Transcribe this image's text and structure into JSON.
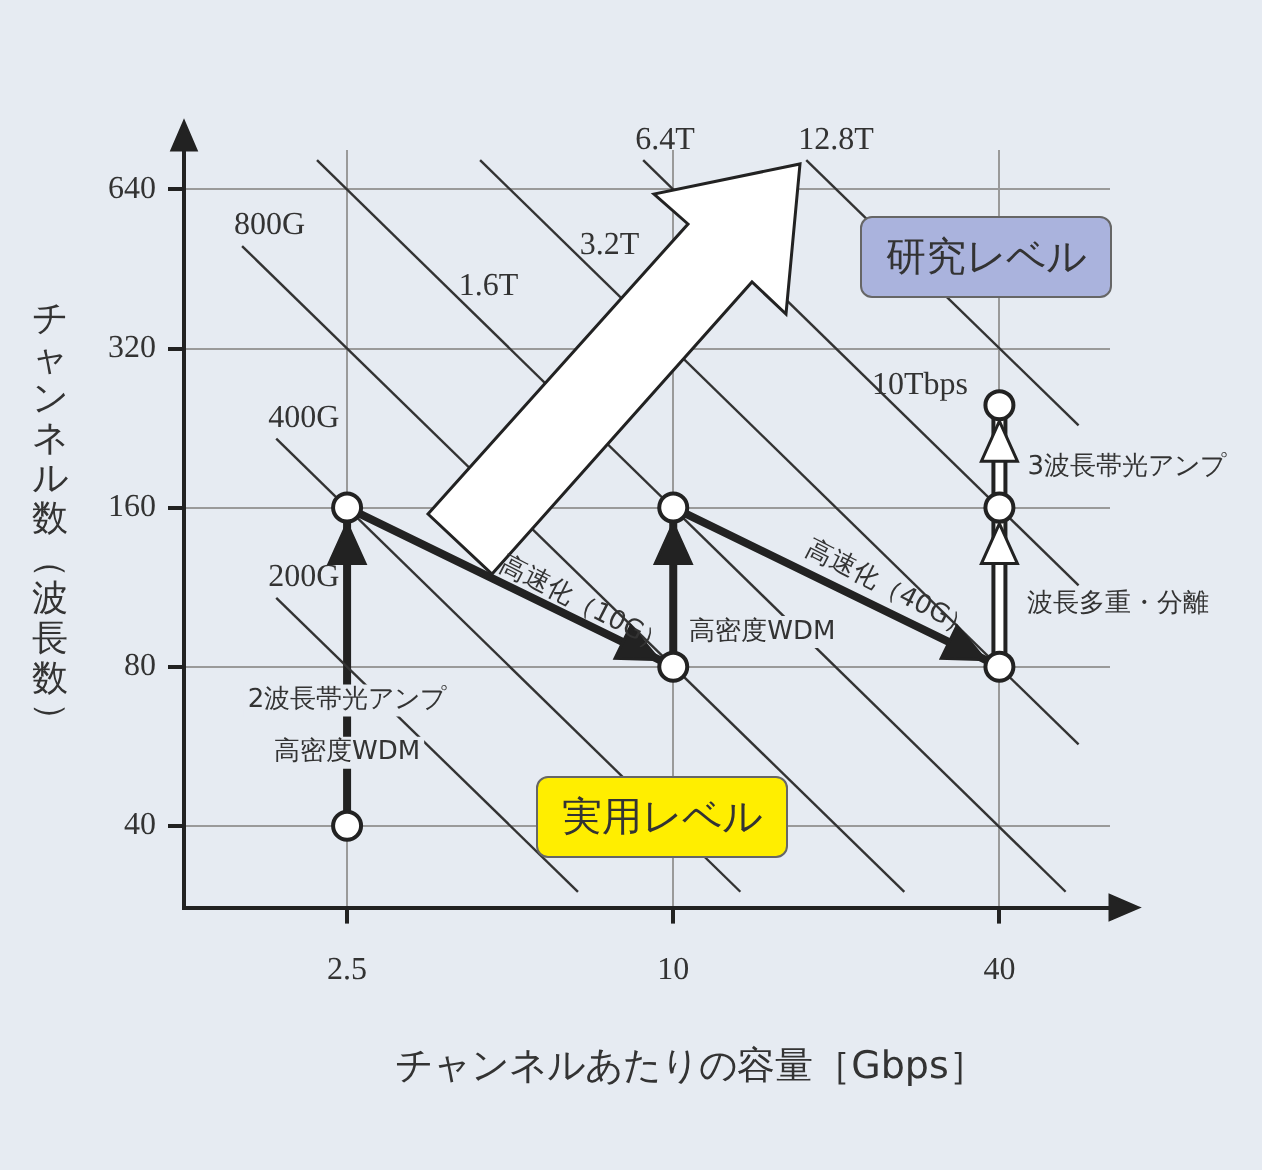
{
  "chart_data": {
    "type": "scatter",
    "xlabel": "チャンネルあたりの容量［Gbps］",
    "ylabel": "チャンネル数（波長数）",
    "log": "xy",
    "xlim": [
      1.25,
      64
    ],
    "ylim": [
      28,
      760
    ],
    "xticks": [
      2.5,
      10,
      40
    ],
    "yticks": [
      40,
      80,
      160,
      320,
      640
    ],
    "grid": true,
    "legend": false,
    "series": [
      {
        "type": "line",
        "name": "200G",
        "color": "#333333",
        "marker": "none",
        "x": [
          1.85,
          6.67
        ],
        "values": [
          108,
          30
        ]
      },
      {
        "type": "line",
        "name": "400G",
        "color": "#333333",
        "marker": "none",
        "x": [
          1.85,
          13.3
        ],
        "values": [
          216,
          30
        ]
      },
      {
        "type": "line",
        "name": "800G",
        "color": "#333333",
        "marker": "none",
        "x": [
          1.6,
          26.7
        ],
        "values": [
          500,
          30
        ]
      },
      {
        "type": "line",
        "name": "1.6T",
        "color": "#333333",
        "marker": "none",
        "x": [
          2.2,
          53
        ],
        "values": [
          727,
          30
        ]
      },
      {
        "type": "line",
        "name": "3.2T",
        "color": "#333333",
        "marker": "none",
        "x": [
          4.4,
          56
        ],
        "values": [
          727,
          57
        ]
      },
      {
        "type": "line",
        "name": "6.4T",
        "color": "#333333",
        "marker": "none",
        "x": [
          8.8,
          56
        ],
        "values": [
          727,
          114
        ]
      },
      {
        "type": "line",
        "name": "12.8T",
        "color": "#333333",
        "marker": "none",
        "x": [
          17.6,
          56
        ],
        "values": [
          727,
          229
        ]
      },
      {
        "type": "line",
        "color": "#222222",
        "marker": "none",
        "x": [
          2.5,
          2.5,
          10,
          10,
          40
        ],
        "values": [
          40,
          160,
          80,
          160,
          80
        ]
      },
      {
        "type": "line",
        "color": "#ffffff",
        "marker": "none",
        "x": [
          40,
          40,
          40
        ],
        "values": [
          80,
          160,
          250
        ]
      },
      {
        "color": "#222222",
        "marker": "circle",
        "x": [
          2.5,
          2.5,
          10,
          10,
          40,
          40,
          40
        ],
        "values": [
          40,
          160,
          80,
          160,
          80,
          160,
          250
        ]
      }
    ],
    "annotations": [
      "研究レベル",
      "実用レベル",
      {
        "text": "2波長帯光アンプ",
        "x": 2.5,
        "y": 69
      },
      {
        "text": "高密度WDM",
        "x": 2.5,
        "y": 55
      },
      "高速化（10G）",
      {
        "text": "高密度WDM",
        "x": 10,
        "y": 93
      },
      "高速化（40G）",
      "10Tbps",
      {
        "text": "3波長帯光アンプ",
        "x": 40,
        "y": 191
      },
      {
        "text": "波長多重・分離",
        "x": 40,
        "y": 105
      }
    ]
  }
}
